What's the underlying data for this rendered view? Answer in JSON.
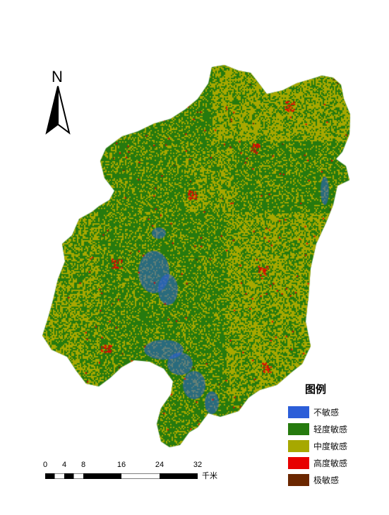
{
  "north_arrow": {
    "label": "N"
  },
  "legend": {
    "title": "图例",
    "items": [
      {
        "label": "不敏感",
        "color": "#2c5ed8"
      },
      {
        "label": "轻度敏感",
        "color": "#267a0e"
      },
      {
        "label": "中度敏感",
        "color": "#a7a800"
      },
      {
        "label": "高度敏感",
        "color": "#e70000"
      },
      {
        "label": "极敏感",
        "color": "#6b2700"
      }
    ]
  },
  "scalebar": {
    "ticks": [
      "0",
      "4",
      "8",
      "16",
      "24",
      "32"
    ],
    "unit": "千米"
  }
}
